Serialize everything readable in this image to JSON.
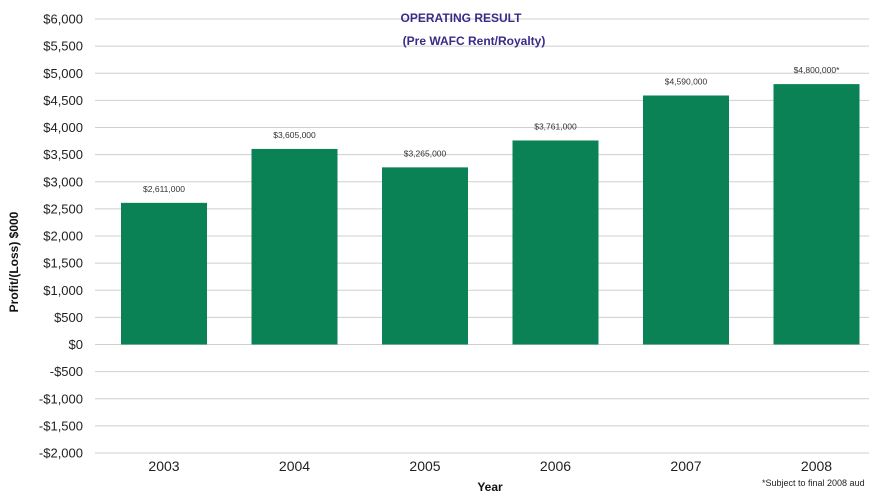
{
  "chart_data": {
    "type": "bar",
    "title": "OPERATING RESULT",
    "subtitle": "(Pre WAFC Rent/Royalty)",
    "xlabel": "Year",
    "ylabel": "Profit/(Loss) $000",
    "categories": [
      "2003",
      "2004",
      "2005",
      "2006",
      "2007",
      "2008"
    ],
    "values": [
      2611,
      3605,
      3265,
      3761,
      4590,
      4800
    ],
    "data_labels": [
      "$2,611,000",
      "$3,605,000",
      "$3,265,000",
      "$3,761,000",
      "$4,590,000",
      "$4,800,000*"
    ],
    "ylim": [
      -2000,
      6000
    ],
    "yticks": [
      6000,
      5500,
      5000,
      4500,
      4000,
      3500,
      3000,
      2500,
      2000,
      1500,
      1000,
      500,
      0,
      -500,
      -1000,
      -1500,
      -2000
    ],
    "ytick_labels": [
      "$6,000",
      "$5,500",
      "$5,000",
      "$4,500",
      "$4,000",
      "$3,500",
      "$3,000",
      "$2,500",
      "$2,000",
      "$1,500",
      "$1,000",
      "$500",
      "$0",
      "-$500",
      "-$1,000",
      "-$1,500",
      "-$2,000"
    ],
    "grid": true,
    "bar_color": "#0a8255",
    "title_color": "#3b2a87",
    "footnote": "*Subject to final 2008 aud"
  }
}
